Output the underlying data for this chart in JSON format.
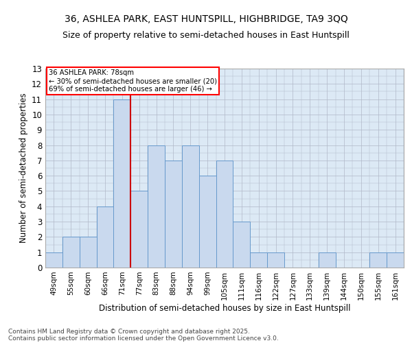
{
  "title1": "36, ASHLEA PARK, EAST HUNTSPILL, HIGHBRIDGE, TA9 3QQ",
  "title2": "Size of property relative to semi-detached houses in East Huntspill",
  "xlabel": "Distribution of semi-detached houses by size in East Huntspill",
  "ylabel": "Number of semi-detached properties",
  "categories": [
    "49sqm",
    "55sqm",
    "60sqm",
    "66sqm",
    "71sqm",
    "77sqm",
    "83sqm",
    "88sqm",
    "94sqm",
    "99sqm",
    "105sqm",
    "111sqm",
    "116sqm",
    "122sqm",
    "127sqm",
    "133sqm",
    "139sqm",
    "144sqm",
    "150sqm",
    "155sqm",
    "161sqm"
  ],
  "values": [
    1,
    2,
    2,
    4,
    11,
    5,
    8,
    7,
    8,
    6,
    7,
    3,
    1,
    1,
    0,
    0,
    1,
    0,
    0,
    1,
    1
  ],
  "bar_color": "#c9d9ee",
  "bar_edge_color": "#6699cc",
  "highlight_index": 4,
  "highlight_line_color": "#cc0000",
  "annotation_title": "36 ASHLEA PARK: 78sqm",
  "annotation_line1": "← 30% of semi-detached houses are smaller (20)",
  "annotation_line2": "69% of semi-detached houses are larger (46) →",
  "ylim": [
    0,
    13
  ],
  "yticks": [
    0,
    1,
    2,
    3,
    4,
    5,
    6,
    7,
    8,
    9,
    10,
    11,
    12,
    13
  ],
  "footnote1": "Contains HM Land Registry data © Crown copyright and database right 2025.",
  "footnote2": "Contains public sector information licensed under the Open Government Licence v3.0.",
  "bg_color": "#ffffff",
  "plot_bg_color": "#dce9f5",
  "grid_color": "#b0b8c8"
}
